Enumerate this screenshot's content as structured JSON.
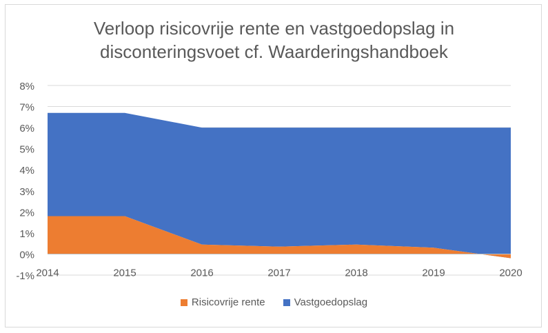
{
  "chart_data": {
    "type": "area",
    "stacked": true,
    "title_lines": [
      "Verloop risicovrije rente en vastgoedopslag in",
      "disconteringsvoet cf. Waarderingshandboek"
    ],
    "categories": [
      "2014",
      "2015",
      "2016",
      "2017",
      "2018",
      "2019",
      "2020"
    ],
    "series": [
      {
        "name": "Risicovrije rente",
        "color": "#ed7d31",
        "values": [
          1.8,
          1.8,
          0.45,
          0.35,
          0.45,
          0.3,
          -0.2
        ]
      },
      {
        "name": "Vastgoedopslag",
        "color": "#4472c4",
        "values": [
          4.9,
          4.9,
          5.55,
          5.65,
          5.55,
          5.7,
          6.2
        ]
      }
    ],
    "y_ticks": [
      "-1%",
      "0%",
      "1%",
      "2%",
      "3%",
      "4%",
      "5%",
      "6%",
      "7%",
      "8%"
    ],
    "ylim": [
      -1,
      8
    ],
    "grid": true,
    "legend_position": "bottom"
  }
}
